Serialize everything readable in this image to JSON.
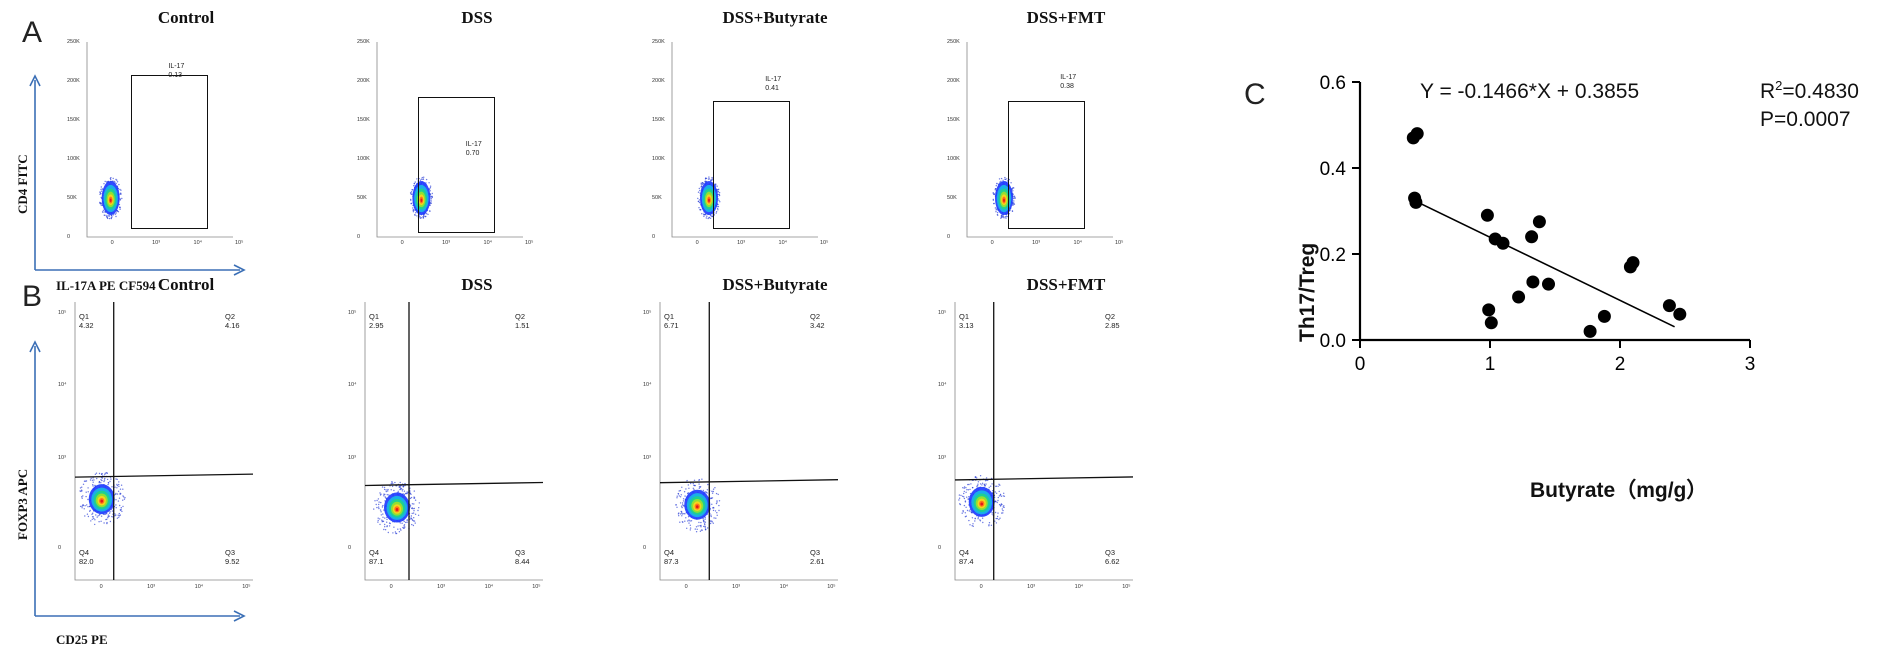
{
  "panels": {
    "A": {
      "letter": "A",
      "y_axis_label": "CD4 FITC",
      "x_axis_label": "IL-17A PE CF594",
      "plots": [
        {
          "title": "Control",
          "gate_name": "IL-17",
          "gate_value": "0.13"
        },
        {
          "title": "DSS",
          "gate_name": "IL-17",
          "gate_value": "0.70"
        },
        {
          "title": "DSS+Butyrate",
          "gate_name": "IL-17",
          "gate_value": "0.41"
        },
        {
          "title": "DSS+FMT",
          "gate_name": "IL-17",
          "gate_value": "0.38"
        }
      ],
      "y_ticks": [
        "250K",
        "200K",
        "150K",
        "100K",
        "50K",
        "0"
      ],
      "x_ticks": [
        "0",
        "10³",
        "10⁴",
        "10⁵"
      ]
    },
    "B": {
      "letter": "B",
      "y_axis_label": "FOXP3 APC",
      "x_axis_label": "CD25 PE",
      "plots": [
        {
          "title": "Control",
          "Q1": "Q1",
          "Q1v": "4.32",
          "Q2": "Q2",
          "Q2v": "4.16",
          "Q3": "Q3",
          "Q3v": "9.52",
          "Q4": "Q4",
          "Q4v": "82.0"
        },
        {
          "title": "DSS",
          "Q1": "Q1",
          "Q1v": "2.95",
          "Q2": "Q2",
          "Q2v": "1.51",
          "Q3": "Q3",
          "Q3v": "8.44",
          "Q4": "Q4",
          "Q4v": "87.1"
        },
        {
          "title": "DSS+Butyrate",
          "Q1": "Q1",
          "Q1v": "6.71",
          "Q2": "Q2",
          "Q2v": "3.42",
          "Q3": "Q3",
          "Q3v": "2.61",
          "Q4": "Q4",
          "Q4v": "87.3"
        },
        {
          "title": "DSS+FMT",
          "Q1": "Q1",
          "Q1v": "3.13",
          "Q2": "Q2",
          "Q2v": "2.85",
          "Q3": "Q3",
          "Q3v": "6.62",
          "Q4": "Q4",
          "Q4v": "87.4"
        }
      ],
      "y_ticks": [
        "10⁵",
        "10⁴",
        "10³",
        "0"
      ],
      "x_ticks": [
        "0",
        "10³",
        "10⁴",
        "10⁵"
      ]
    },
    "C": {
      "letter": "C",
      "equation": "Y = -0.1466*X + 0.3855",
      "r2_prefix": "R",
      "r2_sup": "2",
      "r2_value": "=0.4830",
      "p_text": "P=0.0007"
    }
  },
  "chart_data": {
    "type": "scatter",
    "title": "",
    "xlabel": "Butyrate（mg/g）",
    "ylabel": "Th17/Treg",
    "xlim": [
      0,
      3
    ],
    "ylim": [
      0,
      0.6
    ],
    "x_ticks": [
      0,
      1,
      2,
      3
    ],
    "y_ticks": [
      0.0,
      0.2,
      0.4,
      0.6
    ],
    "y_tick_labels": [
      "0.0",
      "0.2",
      "0.4",
      "0.6"
    ],
    "points": [
      {
        "x": 0.41,
        "y": 0.47
      },
      {
        "x": 0.44,
        "y": 0.48
      },
      {
        "x": 0.42,
        "y": 0.33
      },
      {
        "x": 0.43,
        "y": 0.32
      },
      {
        "x": 0.98,
        "y": 0.29
      },
      {
        "x": 1.04,
        "y": 0.235
      },
      {
        "x": 1.1,
        "y": 0.225
      },
      {
        "x": 1.32,
        "y": 0.24
      },
      {
        "x": 1.38,
        "y": 0.275
      },
      {
        "x": 0.99,
        "y": 0.07
      },
      {
        "x": 1.01,
        "y": 0.04
      },
      {
        "x": 1.22,
        "y": 0.1
      },
      {
        "x": 1.33,
        "y": 0.135
      },
      {
        "x": 1.45,
        "y": 0.13
      },
      {
        "x": 1.77,
        "y": 0.02
      },
      {
        "x": 1.88,
        "y": 0.055
      },
      {
        "x": 2.08,
        "y": 0.17
      },
      {
        "x": 2.1,
        "y": 0.18
      },
      {
        "x": 2.38,
        "y": 0.08
      },
      {
        "x": 2.46,
        "y": 0.06
      }
    ],
    "regression": {
      "slope": -0.1466,
      "intercept": 0.3855,
      "x_start": 0.41,
      "x_end": 2.42
    },
    "grid": false,
    "marker_color": "#000000"
  }
}
